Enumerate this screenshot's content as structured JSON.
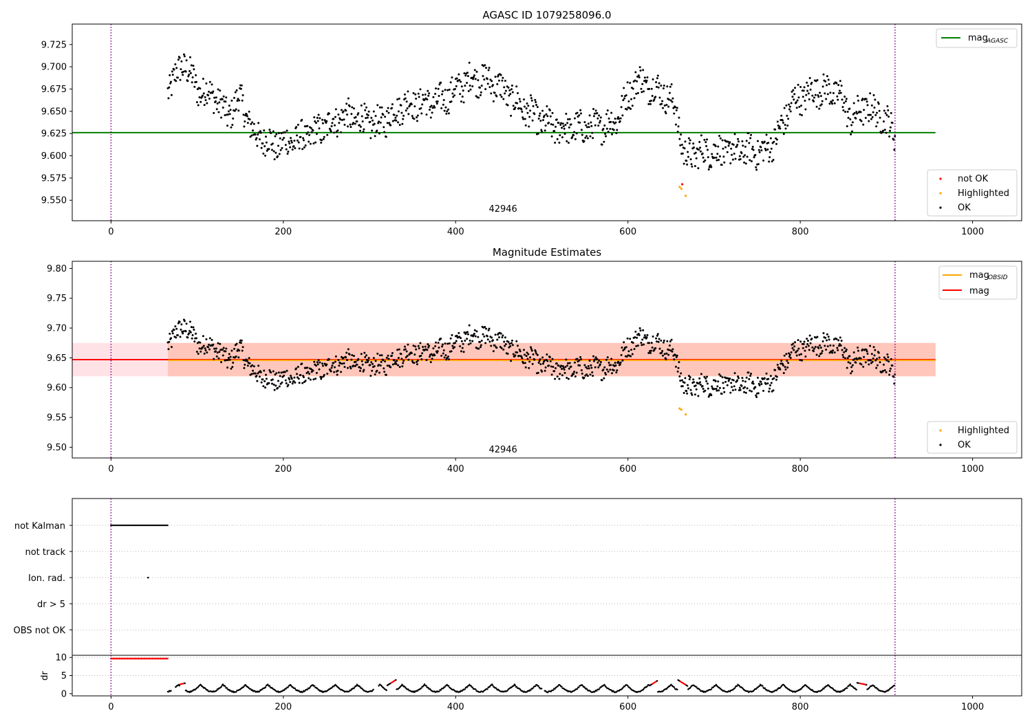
{
  "chart_data": [
    {
      "type": "scatter",
      "title": "AGASC ID 1079258096.0",
      "xlim": [
        -45,
        1057
      ],
      "ylim": [
        9.527,
        9.748
      ],
      "xticks": [
        0,
        200,
        400,
        600,
        800,
        1000
      ],
      "yticks": [
        9.55,
        9.575,
        9.6,
        9.625,
        9.65,
        9.675,
        9.7,
        9.725
      ],
      "ytick_labels": [
        "9.550",
        "9.575",
        "9.600",
        "9.625",
        "9.650",
        "9.675",
        "9.700",
        "9.725"
      ],
      "vlines": [
        0,
        910
      ],
      "hline": {
        "y": 9.626,
        "x0": -45,
        "x1": 957,
        "color": "#008000"
      },
      "obsid_label": {
        "text": "42946",
        "x": 455,
        "y": 9.541
      },
      "legend_upper": [
        {
          "label": "mag",
          "sub": "AGASC",
          "color": "#008000",
          "kind": "line"
        }
      ],
      "legend_lower": [
        {
          "label": "not OK",
          "color": "#ff0000",
          "kind": "dot"
        },
        {
          "label": "Highlighted",
          "color": "#ffa500",
          "kind": "dot"
        },
        {
          "label": "OK",
          "color": "#000000",
          "kind": "dot"
        }
      ],
      "series": [
        {
          "name": "OK",
          "color": "#000000",
          "points": "generated-from-trend"
        },
        {
          "name": "Highlighted",
          "color": "#ffa500",
          "x": [
            660,
            662,
            667
          ],
          "y": [
            9.565,
            9.563,
            9.555
          ]
        },
        {
          "name": "not OK",
          "color": "#ff0000",
          "x": [
            663
          ],
          "y": [
            9.568
          ]
        }
      ]
    },
    {
      "type": "scatter",
      "title": "Magnitude Estimates",
      "xlim": [
        -45,
        1057
      ],
      "ylim": [
        9.482,
        9.812
      ],
      "xticks": [
        0,
        200,
        400,
        600,
        800,
        1000
      ],
      "yticks": [
        9.5,
        9.55,
        9.6,
        9.65,
        9.7,
        9.75,
        9.8
      ],
      "ytick_labels": [
        "9.50",
        "9.55",
        "9.60",
        "9.65",
        "9.70",
        "9.75",
        "9.80"
      ],
      "vlines": [
        0,
        910
      ],
      "bands": [
        {
          "x0": -45,
          "x1": 957,
          "y0": 9.619,
          "y1": 9.675,
          "color": "#ffb6c1",
          "opacity": 0.4
        },
        {
          "x0": 66,
          "x1": 957,
          "y0": 9.619,
          "y1": 9.675,
          "color": "#ffa07a",
          "opacity": 0.4
        }
      ],
      "hlines": [
        {
          "y": 9.647,
          "x0": -45,
          "x1": 957,
          "color": "#ff0000",
          "name": "mag"
        },
        {
          "y": 9.646,
          "x0": 66,
          "x1": 957,
          "color": "#ffa500",
          "name": "mag_OBSID"
        }
      ],
      "obsid_label": {
        "text": "42946",
        "x": 455,
        "y": 9.497
      },
      "legend_upper": [
        {
          "label": "mag",
          "sub": "OBSID",
          "color": "#ffa500",
          "kind": "line"
        },
        {
          "label": "mag",
          "sub": "",
          "color": "#ff0000",
          "kind": "line"
        }
      ],
      "legend_lower": [
        {
          "label": "Highlighted",
          "color": "#ffa500",
          "kind": "dot"
        },
        {
          "label": "OK",
          "color": "#000000",
          "kind": "dot"
        }
      ]
    },
    {
      "type": "scatter",
      "title": "",
      "xlim": [
        -45,
        1057
      ],
      "categories": [
        "not Kalman",
        "not track",
        "Ion. rad.",
        "dr > 5",
        "OBS not OK"
      ],
      "flags": {
        "not Kalman": {
          "x0": 0,
          "x1": 66,
          "step": 1.6
        },
        "Ion. rad.": {
          "x": [
            43
          ]
        }
      },
      "vlines": [
        0,
        910
      ]
    },
    {
      "type": "line",
      "title": "",
      "ylabel": "dr",
      "xlim": [
        -45,
        1057
      ],
      "ylim": [
        -0.6,
        10.6
      ],
      "yticks": [
        0,
        5,
        10
      ],
      "xticks": [
        0,
        200,
        400,
        600,
        800,
        1000
      ],
      "vlines": [
        0,
        910
      ],
      "red_high": {
        "x0": 0,
        "x1": 66,
        "y": 9.7
      },
      "red_segments": [
        [
          80,
          85
        ],
        [
          325,
          330
        ],
        [
          628,
          633
        ],
        [
          660,
          668
        ],
        [
          868,
          876
        ]
      ]
    }
  ]
}
